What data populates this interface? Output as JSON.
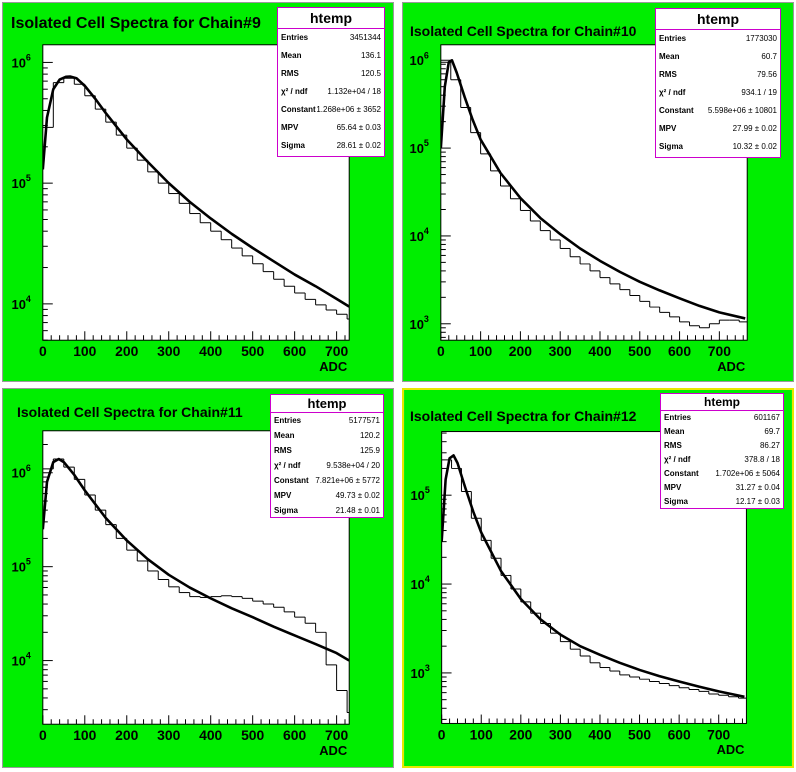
{
  "colors": {
    "frame": "#00ee00",
    "plot_bg": "#ffffff",
    "stats_border": "#cc00cc",
    "line": "#000000",
    "pad4_border": "#e8e800"
  },
  "chart_data": [
    {
      "type": "line",
      "title": "Isolated Cell Spectra for Chain#9",
      "xlabel": "ADC",
      "ylabel": "",
      "xlim": [
        0,
        730
      ],
      "ylim": [
        5000,
        1400000
      ],
      "yscale": "log",
      "x_ticks": [
        "0",
        "100",
        "200",
        "300",
        "400",
        "500",
        "600",
        "700"
      ],
      "y_ticks": [
        {
          "base": "10",
          "exp": "4",
          "value": 10000
        },
        {
          "base": "10",
          "exp": "5",
          "value": 100000
        },
        {
          "base": "10",
          "exp": "6",
          "value": 1000000
        }
      ],
      "series": [
        {
          "kind": "histogram",
          "bin_width": 25,
          "values": [
            290000,
            680000,
            740000,
            660000,
            530000,
            410000,
            320000,
            250000,
            195000,
            155000,
            124000,
            100000,
            82000,
            68000,
            56000,
            47000,
            40000,
            34000,
            29000,
            25000,
            21500,
            18500,
            16000,
            14000,
            12300,
            10900,
            9800,
            8900,
            8200,
            7500
          ]
        },
        {
          "kind": "fit",
          "x": [
            0,
            10,
            25,
            40,
            55,
            65,
            80,
            100,
            125,
            150,
            200,
            250,
            300,
            350,
            400,
            450,
            500,
            550,
            600,
            650,
            700,
            730
          ],
          "y": [
            130000,
            350000,
            600000,
            720000,
            760000,
            765000,
            740000,
            640000,
            500000,
            380000,
            230000,
            150000,
            100000,
            70000,
            51000,
            38000,
            29000,
            22500,
            17500,
            14000,
            11000,
            9500
          ]
        }
      ],
      "stats": {
        "title": "htemp",
        "rows": [
          {
            "label": "Entries",
            "value": "3451344"
          },
          {
            "label": "Mean",
            "value": "136.1"
          },
          {
            "label": "RMS",
            "value": "120.5"
          },
          {
            "label": "χ² / ndf",
            "value": "1.132e+04 / 18"
          },
          {
            "label": "Constant",
            "value": "1.268e+06 ± 3652"
          },
          {
            "label": "MPV",
            "value": "65.64 ± 0.03"
          },
          {
            "label": "Sigma",
            "value": "28.61 ± 0.02"
          }
        ]
      }
    },
    {
      "type": "line",
      "title": "Isolated Cell Spectra for Chain#10",
      "xlabel": "ADC",
      "ylabel": "",
      "xlim": [
        0,
        770
      ],
      "ylim": [
        650,
        1500000
      ],
      "yscale": "log",
      "x_ticks": [
        "0",
        "100",
        "200",
        "300",
        "400",
        "500",
        "600",
        "700"
      ],
      "y_ticks": [
        {
          "base": "10",
          "exp": "3",
          "value": 1000
        },
        {
          "base": "10",
          "exp": "4",
          "value": 10000
        },
        {
          "base": "10",
          "exp": "5",
          "value": 100000
        },
        {
          "base": "10",
          "exp": "6",
          "value": 1000000
        }
      ],
      "series": [
        {
          "kind": "histogram",
          "bin_width": 25,
          "values": [
            950000,
            600000,
            290000,
            150000,
            86000,
            55000,
            37000,
            26500,
            19500,
            14800,
            11500,
            9000,
            7200,
            5800,
            4800,
            4000,
            3350,
            2850,
            2450,
            2100,
            1800,
            1550,
            1350,
            1200,
            1050,
            950,
            900,
            1000,
            1100,
            1100,
            1050
          ]
        },
        {
          "kind": "fit",
          "x": [
            0,
            10,
            20,
            28,
            40,
            60,
            80,
            100,
            150,
            200,
            250,
            300,
            350,
            400,
            450,
            500,
            550,
            600,
            650,
            700,
            765
          ],
          "y": [
            100000,
            500000,
            950000,
            1000000,
            720000,
            380000,
            210000,
            125000,
            52000,
            27000,
            16000,
            10500,
            7200,
            5200,
            3900,
            3000,
            2400,
            1950,
            1600,
            1350,
            1150
          ]
        }
      ],
      "stats": {
        "title": "htemp",
        "rows": [
          {
            "label": "Entries",
            "value": "1773030"
          },
          {
            "label": "Mean",
            "value": "60.7"
          },
          {
            "label": "RMS",
            "value": "79.56"
          },
          {
            "label": "χ² / ndf",
            "value": "934.1 / 19"
          },
          {
            "label": "Constant",
            "value": "5.598e+06 ± 10801"
          },
          {
            "label": "MPV",
            "value": "27.99 ± 0.02"
          },
          {
            "label": "Sigma",
            "value": "10.32 ± 0.02"
          }
        ]
      }
    },
    {
      "type": "line",
      "title": "Isolated Cell Spectra for Chain#11",
      "xlabel": "ADC",
      "ylabel": "",
      "xlim": [
        0,
        730
      ],
      "ylim": [
        2100,
        2800000
      ],
      "yscale": "log",
      "x_ticks": [
        "0",
        "100",
        "200",
        "300",
        "400",
        "500",
        "600",
        "700"
      ],
      "y_ticks": [
        {
          "base": "10",
          "exp": "4",
          "value": 10000
        },
        {
          "base": "10",
          "exp": "5",
          "value": 100000
        },
        {
          "base": "10",
          "exp": "6",
          "value": 1000000
        }
      ],
      "series": [
        {
          "kind": "histogram",
          "bin_width": 25,
          "values": [
            1100000,
            1400000,
            1150000,
            850000,
            580000,
            400000,
            280000,
            200000,
            150000,
            115000,
            90000,
            73000,
            61000,
            53000,
            48000,
            47000,
            48000,
            49000,
            48000,
            46000,
            43000,
            40000,
            37000,
            33000,
            29000,
            25000,
            20000,
            9000,
            4800,
            2800
          ]
        },
        {
          "kind": "fit",
          "x": [
            0,
            10,
            25,
            38,
            50,
            75,
            100,
            150,
            200,
            250,
            300,
            350,
            400,
            450,
            500,
            550,
            600,
            650,
            700,
            730
          ],
          "y": [
            250000,
            800000,
            1300000,
            1400000,
            1300000,
            950000,
            650000,
            330000,
            190000,
            120000,
            82000,
            60000,
            46000,
            36000,
            29000,
            23000,
            18500,
            15000,
            12000,
            10000
          ]
        }
      ],
      "stats": {
        "title": "htemp",
        "rows": [
          {
            "label": "Entries",
            "value": "5177571"
          },
          {
            "label": "Mean",
            "value": "120.2"
          },
          {
            "label": "RMS",
            "value": "125.9"
          },
          {
            "label": "χ² / ndf",
            "value": "9.538e+04 / 20"
          },
          {
            "label": "Constant",
            "value": "7.821e+06 ± 5772"
          },
          {
            "label": "MPV",
            "value": "49.73 ± 0.02"
          },
          {
            "label": "Sigma",
            "value": "21.48 ± 0.01"
          }
        ]
      }
    },
    {
      "type": "line",
      "title": "Isolated Cell Spectra for Chain#12",
      "xlabel": "ADC",
      "ylabel": "",
      "xlim": [
        0,
        770
      ],
      "ylim": [
        270,
        520000
      ],
      "yscale": "log",
      "x_ticks": [
        "0",
        "100",
        "200",
        "300",
        "400",
        "500",
        "600",
        "700"
      ],
      "y_ticks": [
        {
          "base": "10",
          "exp": "3",
          "value": 1000
        },
        {
          "base": "10",
          "exp": "4",
          "value": 10000
        },
        {
          "base": "10",
          "exp": "5",
          "value": 100000
        }
      ],
      "series": [
        {
          "kind": "histogram",
          "bin_width": 25,
          "values": [
            250000,
            200000,
            110000,
            55000,
            31000,
            19500,
            12500,
            8800,
            6300,
            4700,
            3600,
            2800,
            2250,
            1850,
            1550,
            1300,
            1150,
            1050,
            950,
            900,
            850,
            800,
            760,
            720,
            680,
            650,
            620,
            580,
            560,
            540,
            520
          ]
        },
        {
          "kind": "fit",
          "x": [
            0,
            10,
            20,
            30,
            40,
            60,
            80,
            100,
            150,
            200,
            250,
            300,
            350,
            400,
            450,
            500,
            550,
            600,
            650,
            700,
            765
          ],
          "y": [
            30000,
            150000,
            260000,
            280000,
            230000,
            120000,
            65000,
            38000,
            14000,
            6800,
            4000,
            2700,
            2000,
            1600,
            1300,
            1080,
            920,
            800,
            700,
            620,
            540
          ]
        }
      ],
      "stats": {
        "title": "htemp",
        "rows": [
          {
            "label": "Entries",
            "value": "601167"
          },
          {
            "label": "Mean",
            "value": "69.7"
          },
          {
            "label": "RMS",
            "value": "86.27"
          },
          {
            "label": "χ² / ndf",
            "value": "378.8 / 18"
          },
          {
            "label": "Constant",
            "value": "1.702e+06 ± 5064"
          },
          {
            "label": "MPV",
            "value": "31.27 ± 0.04"
          },
          {
            "label": "Sigma",
            "value": "12.17 ± 0.03"
          }
        ]
      }
    }
  ]
}
